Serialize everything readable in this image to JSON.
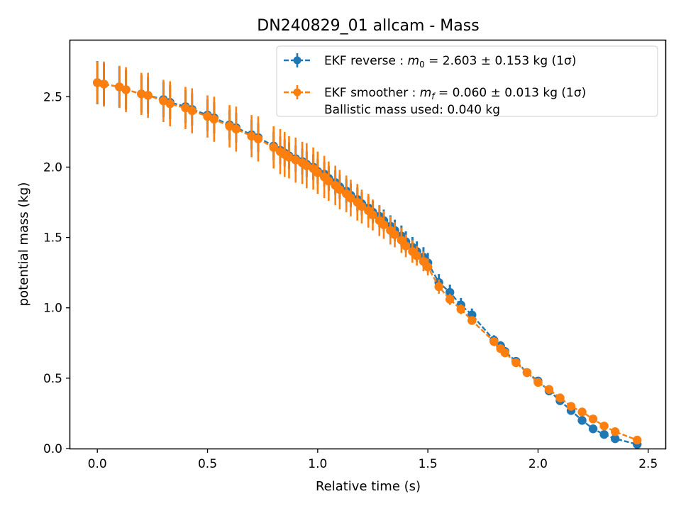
{
  "chart_data": {
    "type": "scatter",
    "title": "DN240829_01 allcam - Mass",
    "xlabel": "Relative time (s)",
    "ylabel": "potential mass (kg)",
    "xlim": [
      -0.123,
      2.578
    ],
    "ylim": [
      0.0,
      2.9
    ],
    "xticks": [
      0.0,
      0.5,
      1.0,
      1.5,
      2.0,
      2.5
    ],
    "xtick_labels": [
      "0.0",
      "0.5",
      "1.0",
      "1.5",
      "2.0",
      "2.5"
    ],
    "yticks": [
      0.0,
      0.5,
      1.0,
      1.5,
      2.0,
      2.5
    ],
    "ytick_labels": [
      "0.0",
      "0.5",
      "1.0",
      "1.5",
      "2.0",
      "2.5"
    ],
    "grid": false,
    "legend_position": "upper right",
    "legend": {
      "entries": [
        {
          "series": 0,
          "lines": [
            {
              "text": "EKF reverse : ",
              "math": "m0",
              "rest": " =  2.603 ± 0.153 kg (1σ)"
            }
          ]
        },
        {
          "series": 1,
          "lines": [
            {
              "text": "EKF smoother : ",
              "math": "mf",
              "rest": " =  0.060 ± 0.013 kg (1σ)"
            },
            {
              "text": " Ballistic mass used: 0.040 kg"
            }
          ]
        }
      ]
    },
    "series": [
      {
        "name": "EKF reverse",
        "color": "#1f77b4",
        "x": [
          0.0,
          0.03,
          0.1,
          0.13,
          0.2,
          0.23,
          0.3,
          0.33,
          0.4,
          0.43,
          0.5,
          0.53,
          0.6,
          0.63,
          0.7,
          0.73,
          0.8,
          0.83,
          0.85,
          0.87,
          0.9,
          0.93,
          0.95,
          0.98,
          1.0,
          1.03,
          1.05,
          1.08,
          1.1,
          1.13,
          1.15,
          1.18,
          1.2,
          1.23,
          1.25,
          1.28,
          1.3,
          1.33,
          1.35,
          1.38,
          1.4,
          1.43,
          1.45,
          1.48,
          1.5,
          1.55,
          1.6,
          1.65,
          1.7,
          1.8,
          1.83,
          1.85,
          1.9,
          1.95,
          2.0,
          2.05,
          2.1,
          2.15,
          2.2,
          2.25,
          2.3,
          2.35,
          2.45
        ],
        "y": [
          2.6,
          2.59,
          2.57,
          2.55,
          2.52,
          2.51,
          2.48,
          2.46,
          2.43,
          2.41,
          2.37,
          2.35,
          2.3,
          2.28,
          2.23,
          2.21,
          2.15,
          2.12,
          2.1,
          2.08,
          2.06,
          2.04,
          2.02,
          2.0,
          1.97,
          1.95,
          1.92,
          1.89,
          1.86,
          1.83,
          1.8,
          1.77,
          1.74,
          1.71,
          1.68,
          1.65,
          1.62,
          1.58,
          1.55,
          1.51,
          1.47,
          1.43,
          1.4,
          1.36,
          1.32,
          1.18,
          1.11,
          1.02,
          0.95,
          0.77,
          0.73,
          0.69,
          0.62,
          0.54,
          0.48,
          0.41,
          0.34,
          0.27,
          0.2,
          0.14,
          0.1,
          0.07,
          0.03
        ],
        "yerr": [
          0.153,
          0.15,
          0.145,
          0.14,
          0.135,
          0.13,
          0.125,
          0.12,
          0.117,
          0.115,
          0.112,
          0.11,
          0.108,
          0.106,
          0.104,
          0.102,
          0.1,
          0.098,
          0.096,
          0.095,
          0.094,
          0.093,
          0.092,
          0.091,
          0.09,
          0.089,
          0.088,
          0.087,
          0.086,
          0.085,
          0.084,
          0.083,
          0.082,
          0.081,
          0.08,
          0.079,
          0.078,
          0.077,
          0.076,
          0.075,
          0.074,
          0.073,
          0.072,
          0.071,
          0.07,
          0.06,
          0.055,
          0.05,
          0.045,
          0.035,
          0.033,
          0.032,
          0.03,
          0.026,
          0.023,
          0.02,
          0.017,
          0.015,
          0.013,
          0.012,
          0.01,
          0.01,
          0.01
        ]
      },
      {
        "name": "EKF smoother",
        "color": "#ff7f0e",
        "x": [
          0.0,
          0.03,
          0.1,
          0.13,
          0.2,
          0.23,
          0.3,
          0.33,
          0.4,
          0.43,
          0.5,
          0.53,
          0.6,
          0.63,
          0.7,
          0.73,
          0.8,
          0.83,
          0.85,
          0.87,
          0.9,
          0.93,
          0.95,
          0.98,
          1.0,
          1.03,
          1.05,
          1.08,
          1.1,
          1.13,
          1.15,
          1.18,
          1.2,
          1.23,
          1.25,
          1.28,
          1.3,
          1.33,
          1.35,
          1.38,
          1.4,
          1.43,
          1.45,
          1.48,
          1.5,
          1.55,
          1.6,
          1.65,
          1.7,
          1.8,
          1.83,
          1.85,
          1.9,
          1.95,
          2.0,
          2.05,
          2.1,
          2.15,
          2.2,
          2.25,
          2.3,
          2.35,
          2.45
        ],
        "y": [
          2.6,
          2.59,
          2.57,
          2.55,
          2.52,
          2.51,
          2.47,
          2.45,
          2.42,
          2.4,
          2.36,
          2.34,
          2.29,
          2.27,
          2.22,
          2.2,
          2.14,
          2.11,
          2.09,
          2.07,
          2.05,
          2.03,
          2.01,
          1.99,
          1.96,
          1.93,
          1.9,
          1.87,
          1.84,
          1.81,
          1.78,
          1.75,
          1.72,
          1.69,
          1.66,
          1.62,
          1.59,
          1.55,
          1.52,
          1.48,
          1.44,
          1.4,
          1.37,
          1.33,
          1.29,
          1.15,
          1.06,
          0.99,
          0.91,
          0.76,
          0.71,
          0.68,
          0.61,
          0.54,
          0.47,
          0.42,
          0.36,
          0.3,
          0.26,
          0.21,
          0.16,
          0.12,
          0.06
        ],
        "yerr": [
          0.15,
          0.16,
          0.15,
          0.16,
          0.15,
          0.16,
          0.15,
          0.16,
          0.15,
          0.16,
          0.15,
          0.16,
          0.15,
          0.16,
          0.15,
          0.16,
          0.15,
          0.16,
          0.16,
          0.15,
          0.16,
          0.15,
          0.16,
          0.15,
          0.15,
          0.15,
          0.14,
          0.14,
          0.14,
          0.13,
          0.13,
          0.13,
          0.12,
          0.12,
          0.11,
          0.11,
          0.1,
          0.1,
          0.09,
          0.09,
          0.08,
          0.08,
          0.07,
          0.07,
          0.06,
          0.05,
          0.04,
          0.035,
          0.03,
          0.025,
          0.025,
          0.02,
          0.02,
          0.02,
          0.015,
          0.015,
          0.015,
          0.014,
          0.014,
          0.013,
          0.013,
          0.013,
          0.013
        ]
      }
    ]
  }
}
